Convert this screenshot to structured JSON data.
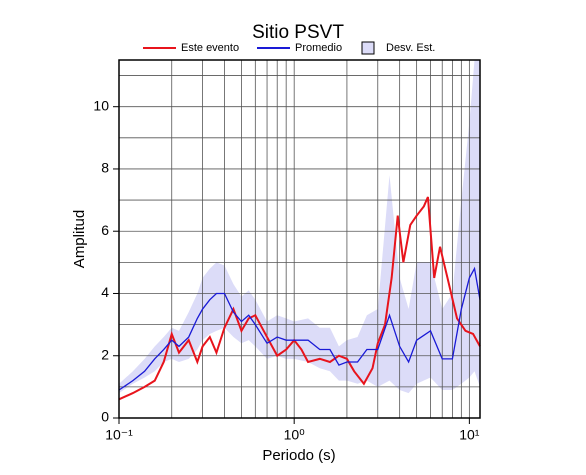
{
  "chart_data": {
    "type": "line",
    "title": "Sitio PSVT",
    "xlabel": "Periodo (s)",
    "ylabel": "Amplitud",
    "xscale": "log",
    "xlim": [
      0.1,
      11.5
    ],
    "ylim": [
      0,
      11.5
    ],
    "xticks": [
      {
        "value": 0.1,
        "label": "10⁻¹"
      },
      {
        "value": 1,
        "label": "10⁰"
      },
      {
        "value": 10,
        "label": "10¹"
      }
    ],
    "xminor": [
      0.2,
      0.3,
      0.4,
      0.5,
      0.6,
      0.7,
      0.8,
      0.9,
      2,
      3,
      4,
      5,
      6,
      7,
      8,
      9
    ],
    "yticks": [
      0,
      2,
      4,
      6,
      8,
      10
    ],
    "yminor": [
      1,
      3,
      5,
      7,
      9,
      11
    ],
    "grid": true,
    "series": [
      {
        "name": "Este evento",
        "color": "#e8141c",
        "x": [
          0.1,
          0.12,
          0.14,
          0.16,
          0.18,
          0.2,
          0.22,
          0.25,
          0.28,
          0.3,
          0.33,
          0.36,
          0.4,
          0.45,
          0.5,
          0.55,
          0.6,
          0.7,
          0.8,
          0.9,
          1.0,
          1.1,
          1.2,
          1.4,
          1.6,
          1.8,
          2.0,
          2.2,
          2.5,
          2.8,
          3.0,
          3.3,
          3.6,
          3.9,
          4.2,
          4.6,
          5.0,
          5.5,
          5.8,
          6.3,
          6.8,
          7.5,
          8.5,
          9.5,
          10.5,
          11.5
        ],
        "values": [
          0.6,
          0.8,
          1.0,
          1.2,
          1.8,
          2.7,
          2.1,
          2.5,
          1.8,
          2.3,
          2.6,
          2.1,
          2.9,
          3.5,
          2.8,
          3.2,
          3.3,
          2.6,
          2.0,
          2.2,
          2.5,
          2.2,
          1.8,
          1.9,
          1.8,
          2.0,
          1.9,
          1.5,
          1.1,
          1.6,
          2.4,
          3.0,
          4.5,
          6.5,
          5.0,
          6.2,
          6.5,
          6.8,
          7.1,
          4.5,
          5.5,
          4.5,
          3.2,
          2.8,
          2.7,
          2.3
        ]
      },
      {
        "name": "Promedio",
        "color": "#1a1ad6",
        "x": [
          0.1,
          0.12,
          0.14,
          0.16,
          0.18,
          0.2,
          0.22,
          0.25,
          0.28,
          0.3,
          0.33,
          0.36,
          0.4,
          0.45,
          0.5,
          0.55,
          0.6,
          0.7,
          0.8,
          0.9,
          1.0,
          1.2,
          1.4,
          1.6,
          1.8,
          2.0,
          2.3,
          2.6,
          3.0,
          3.5,
          4.0,
          4.5,
          5.0,
          6.0,
          7.0,
          8.0,
          9.0,
          10,
          10.7,
          11.5
        ],
        "values": [
          0.9,
          1.2,
          1.5,
          1.9,
          2.2,
          2.5,
          2.3,
          2.6,
          3.2,
          3.5,
          3.8,
          4.0,
          4.0,
          3.4,
          3.1,
          3.3,
          3.0,
          2.4,
          2.6,
          2.5,
          2.5,
          2.5,
          2.2,
          2.2,
          1.7,
          1.8,
          1.8,
          2.2,
          2.2,
          3.3,
          2.3,
          1.8,
          2.5,
          2.8,
          1.9,
          1.9,
          3.5,
          4.5,
          4.8,
          3.8
        ]
      }
    ],
    "band": {
      "name": "Desv. Est.",
      "color": "#dcdcf8",
      "x": [
        0.1,
        0.12,
        0.14,
        0.16,
        0.18,
        0.2,
        0.22,
        0.25,
        0.28,
        0.3,
        0.33,
        0.36,
        0.4,
        0.45,
        0.5,
        0.55,
        0.6,
        0.7,
        0.8,
        0.9,
        1.0,
        1.2,
        1.4,
        1.6,
        1.8,
        2.0,
        2.3,
        2.6,
        3.0,
        3.5,
        4.0,
        4.5,
        5.0,
        6.0,
        7.0,
        8.0,
        9.0,
        10,
        10.7,
        11.5
      ],
      "lower": [
        0.8,
        1.1,
        1.3,
        1.5,
        1.8,
        1.9,
        1.8,
        1.9,
        2.2,
        2.5,
        2.7,
        2.8,
        2.9,
        2.6,
        2.4,
        2.5,
        2.3,
        1.9,
        2.0,
        1.9,
        1.9,
        1.8,
        1.6,
        1.5,
        1.2,
        1.2,
        1.1,
        1.2,
        1.0,
        1.2,
        0.9,
        0.8,
        1.1,
        1.3,
        0.9,
        0.9,
        1.1,
        1.3,
        1.5,
        1.0
      ],
      "upper": [
        1.1,
        1.5,
        1.9,
        2.3,
        2.6,
        2.9,
        2.8,
        3.4,
        4.0,
        4.5,
        4.8,
        5.0,
        4.9,
        4.3,
        3.9,
        4.1,
        3.8,
        3.1,
        3.3,
        3.2,
        3.1,
        3.2,
        2.9,
        2.9,
        2.3,
        2.5,
        2.6,
        3.3,
        3.5,
        7.8,
        4.5,
        3.5,
        5.0,
        5.0,
        3.5,
        4.0,
        7.0,
        9.5,
        11.5,
        11.5
      ]
    }
  }
}
